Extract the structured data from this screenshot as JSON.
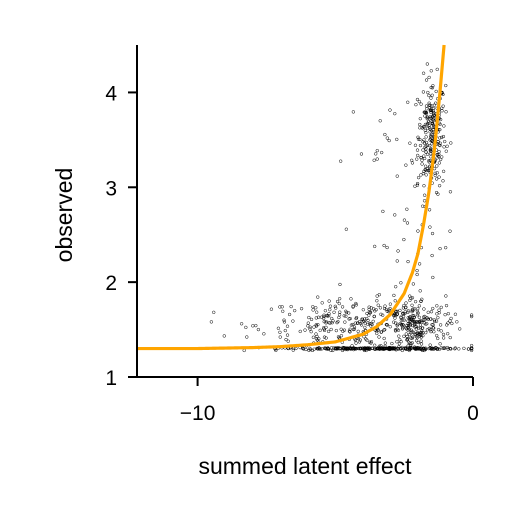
{
  "chart_data": {
    "type": "scatter",
    "title": "",
    "xlabel": "summed latent effect",
    "ylabel": "observed",
    "xlim": [
      -12.2,
      0
    ],
    "ylim": [
      1,
      4.5
    ],
    "xticks": [
      -10,
      0
    ],
    "yticks": [
      1,
      2,
      3,
      4
    ],
    "xtick_labels": [
      "−10",
      "0"
    ],
    "ytick_labels": [
      "1",
      "2",
      "3",
      "4"
    ],
    "grid": false,
    "legend": "none",
    "colors": {
      "points": "#000000",
      "fit": "#FFA500",
      "axes": "#000000"
    },
    "fit_curve": {
      "description_type": "exponential",
      "x": [
        -12.2,
        -10,
        -8,
        -7,
        -6,
        -5,
        -4,
        -3.5,
        -3,
        -2.5,
        -2.2,
        -2,
        -1.8,
        -1.6,
        -1.4,
        -1.2,
        -1.05
      ],
      "y": [
        1.3,
        1.3,
        1.31,
        1.32,
        1.34,
        1.37,
        1.45,
        1.53,
        1.66,
        1.88,
        2.1,
        2.3,
        2.6,
        2.95,
        3.4,
        4.0,
        4.5
      ]
    },
    "scatter_clusters": [
      {
        "name": "",
        "n": 240,
        "x_mean": -1.5,
        "x_sd": 0.25,
        "y_mean": 3.55,
        "y_sd": 0.3
      },
      {
        "name": "",
        "n": 320,
        "x_mean": -4.0,
        "x_sd": 1.9,
        "y_mean": 1.55,
        "y_sd": 0.13
      },
      {
        "name": "",
        "n": 160,
        "x_mean": -2.2,
        "x_sd": 0.6,
        "y_mean": 1.55,
        "y_sd": 0.15
      },
      {
        "name": "",
        "n": 260,
        "x_mean": -3.6,
        "x_sd": 1.6,
        "y_mean": 1.3,
        "y_sd": 0.005
      },
      {
        "name": "",
        "n": 40,
        "x_mean": -2.2,
        "x_sd": 0.8,
        "y_mean": 2.4,
        "y_sd": 0.4
      },
      {
        "name": "",
        "n": 25,
        "x_mean": -2.8,
        "x_sd": 0.9,
        "y_mean": 3.4,
        "y_sd": 0.25
      }
    ]
  }
}
